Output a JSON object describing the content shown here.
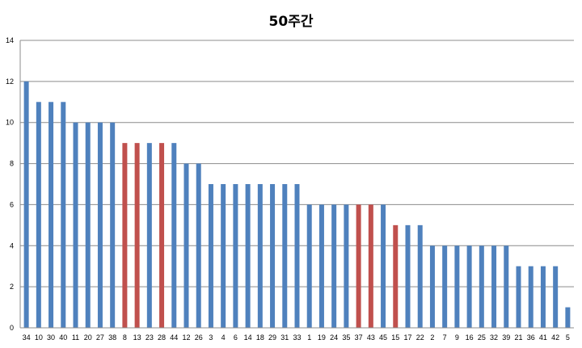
{
  "chart_data": {
    "type": "bar",
    "title": "50주간",
    "xlabel": "",
    "ylabel": "",
    "ylim": [
      0,
      14
    ],
    "yticks": [
      "0",
      "2",
      "4",
      "6",
      "8",
      "10",
      "12",
      "14"
    ],
    "grid": true,
    "legend": "none",
    "colors": {
      "default": "#4f81bd",
      "highlight": "#c0504d",
      "grid": "#8c8c8c"
    },
    "categories": [
      "34",
      "10",
      "30",
      "40",
      "11",
      "20",
      "27",
      "38",
      "8",
      "13",
      "23",
      "28",
      "44",
      "12",
      "26",
      "3",
      "4",
      "6",
      "14",
      "18",
      "29",
      "31",
      "33",
      "1",
      "19",
      "24",
      "35",
      "37",
      "43",
      "45",
      "15",
      "17",
      "22",
      "2",
      "7",
      "9",
      "16",
      "25",
      "32",
      "39",
      "21",
      "36",
      "41",
      "42",
      "5"
    ],
    "values": [
      12,
      11,
      11,
      11,
      10,
      10,
      10,
      10,
      9,
      9,
      9,
      9,
      9,
      8,
      8,
      7,
      7,
      7,
      7,
      7,
      7,
      7,
      7,
      6,
      6,
      6,
      6,
      6,
      6,
      6,
      5,
      5,
      5,
      4,
      4,
      4,
      4,
      4,
      4,
      4,
      3,
      3,
      3,
      3,
      1
    ],
    "highlighted": [
      "8",
      "13",
      "28",
      "37",
      "43",
      "15"
    ]
  }
}
